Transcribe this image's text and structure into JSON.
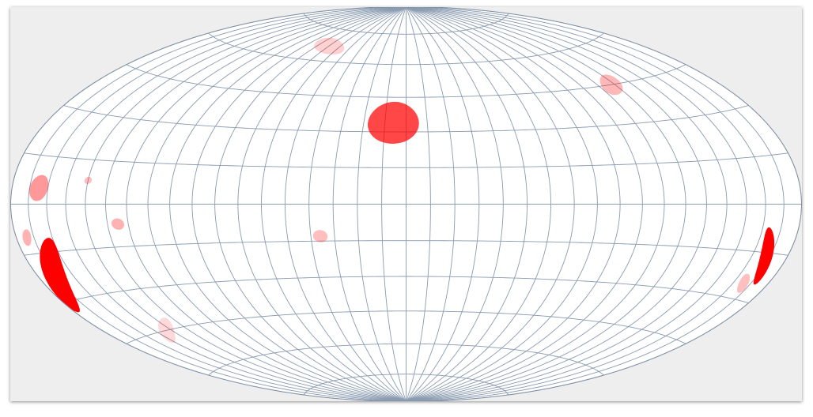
{
  "map": {
    "projection": "hammer-aitoff",
    "graticule": {
      "meridian_step_deg": 10,
      "parallel_step_deg": 15,
      "line_color": "#8a9bb0"
    },
    "colors": {
      "frame_background": "#eeeeee",
      "sphere_fill": "#ffffff",
      "outline": "#7d8ea3"
    },
    "spots": [
      {
        "lon": -6,
        "lat": 34,
        "major_deg": 10,
        "minor_deg": 9,
        "angle_deg": 0,
        "opacity": 0.72
      },
      {
        "lon": -170,
        "lat": -22,
        "major_deg": 14,
        "minor_deg": 5,
        "angle_deg": 52,
        "opacity": 1.0
      },
      {
        "lon": 168,
        "lat": -16,
        "major_deg": 10,
        "minor_deg": 3,
        "angle_deg": -60,
        "opacity": 1.0
      },
      {
        "lon": 166,
        "lat": -25,
        "major_deg": 4,
        "minor_deg": 2,
        "angle_deg": -40,
        "opacity": 0.25
      },
      {
        "lon": -165,
        "lat": 5,
        "major_deg": 5,
        "minor_deg": 4,
        "angle_deg": 10,
        "opacity": 0.4
      },
      {
        "lon": -140,
        "lat": 8,
        "major_deg": 1.8,
        "minor_deg": 1.2,
        "angle_deg": 0,
        "opacity": 0.25
      },
      {
        "lon": -125,
        "lat": -7,
        "major_deg": 3,
        "minor_deg": 2,
        "angle_deg": 0,
        "opacity": 0.3
      },
      {
        "lon": -36,
        "lat": -13,
        "major_deg": 3,
        "minor_deg": 2.5,
        "angle_deg": 0,
        "opacity": 0.25
      },
      {
        "lon": -70,
        "lat": 67,
        "major_deg": 7,
        "minor_deg": 3,
        "angle_deg": -20,
        "opacity": 0.18
      },
      {
        "lon": 118,
        "lat": 45,
        "major_deg": 6,
        "minor_deg": 3,
        "angle_deg": 28,
        "opacity": 0.28
      },
      {
        "lon": -143,
        "lat": -45,
        "major_deg": 8,
        "minor_deg": 2,
        "angle_deg": 28,
        "opacity": 0.15
      },
      {
        "lon": -174,
        "lat": -10,
        "major_deg": 3,
        "minor_deg": 2,
        "angle_deg": 40,
        "opacity": 0.3
      }
    ],
    "spot_color": "#ff0000"
  }
}
